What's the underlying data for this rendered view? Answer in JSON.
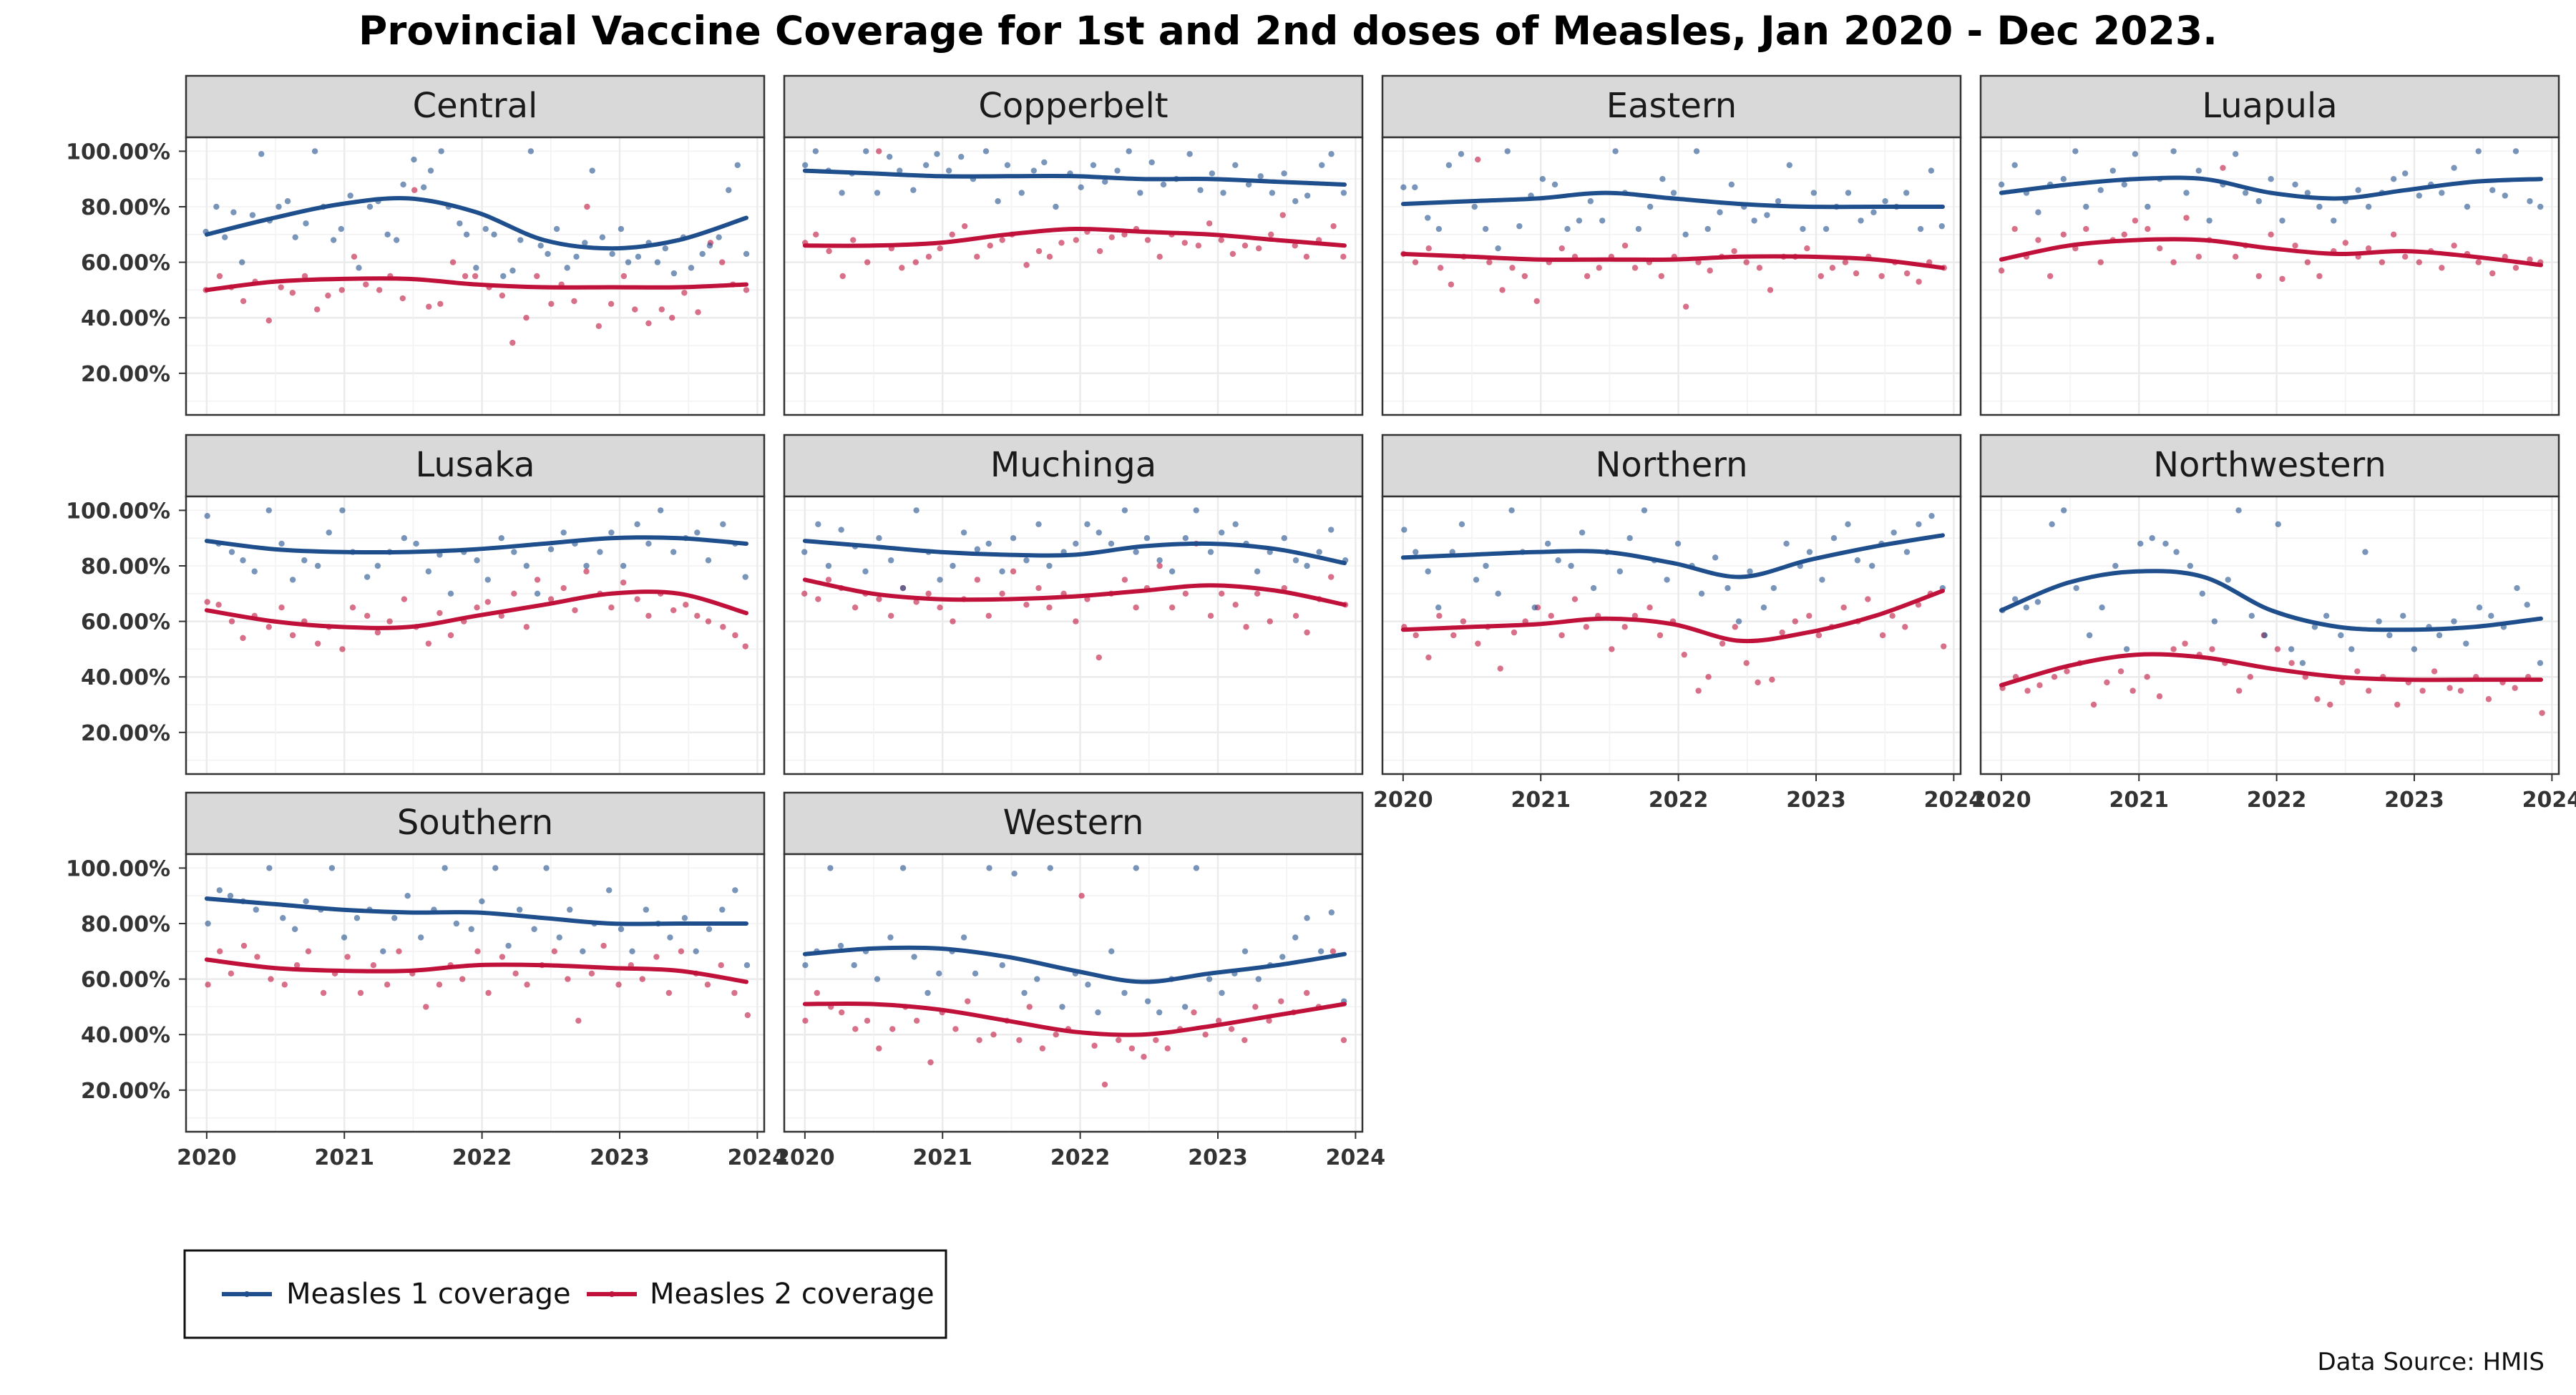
{
  "chart_data": {
    "type": "scatter",
    "title": "Provincial Vaccine Coverage for 1st and 2nd doses of Measles, Jan 2020 - Dec 2023.",
    "caption": "Data Source: HMIS",
    "xlabel": "",
    "ylabel": "",
    "x_ticks": [
      "2020",
      "2021",
      "2022",
      "2023",
      "2024"
    ],
    "y_ticks": [
      "20.00%",
      "40.00%",
      "60.00%",
      "80.00%",
      "100.00%"
    ],
    "xlim": [
      2019.85,
      2024.05
    ],
    "ylim": [
      0.05,
      1.05
    ],
    "grid": true,
    "legend_position": "bottom-left",
    "series_meta": [
      {
        "key": "m1",
        "name": "Measles 1 coverage",
        "color": "#1f4e8c"
      },
      {
        "key": "m2",
        "name": "Measles 2 coverage",
        "color": "#c0113a"
      }
    ],
    "panels": [
      {
        "name": "Central",
        "m1": [
          0.71,
          0.8,
          0.69,
          0.78,
          0.6,
          0.77,
          0.99,
          0.75,
          0.8,
          0.82,
          0.69,
          0.74,
          1.0,
          0.8,
          0.68,
          0.72,
          0.84,
          0.58,
          0.8,
          0.82,
          0.7,
          0.68,
          0.88,
          0.97,
          0.87,
          0.93,
          1.0,
          0.8,
          0.74,
          0.7,
          0.58,
          0.72,
          0.7,
          0.55,
          0.57,
          0.68,
          1.0,
          0.66,
          0.63,
          0.72,
          0.58,
          0.62,
          0.67,
          0.93,
          0.69,
          0.63,
          0.72,
          0.6,
          0.62,
          0.67,
          0.6,
          0.65,
          0.56,
          0.69,
          0.58,
          0.63,
          0.66,
          0.69,
          0.86,
          0.95,
          0.63
        ],
        "m1_trend": [
          0.7,
          0.76,
          0.81,
          0.83,
          0.78,
          0.68,
          0.65,
          0.68,
          0.76
        ],
        "m2": [
          0.5,
          0.55,
          0.51,
          0.46,
          0.53,
          0.39,
          0.51,
          0.49,
          0.55,
          0.43,
          0.48,
          0.5,
          0.62,
          0.52,
          0.5,
          0.55,
          0.47,
          0.86,
          0.44,
          0.45,
          0.6,
          0.55,
          0.55,
          0.51,
          0.48,
          0.31,
          0.4,
          0.55,
          0.45,
          0.52,
          0.46,
          0.8,
          0.37,
          0.45,
          0.55,
          0.43,
          0.38,
          0.43,
          0.4,
          0.49,
          0.42,
          0.67,
          0.6,
          0.52,
          0.5
        ],
        "m2_trend": [
          0.5,
          0.53,
          0.54,
          0.54,
          0.52,
          0.51,
          0.51,
          0.51,
          0.52
        ]
      },
      {
        "name": "Copperbelt",
        "m1": [
          0.95,
          1.0,
          0.93,
          0.85,
          0.92,
          1.0,
          0.85,
          0.98,
          0.93,
          0.86,
          0.95,
          0.99,
          0.93,
          0.98,
          0.9,
          1.0,
          0.82,
          0.95,
          0.85,
          0.93,
          0.96,
          0.8,
          0.92,
          0.87,
          0.95,
          0.89,
          0.93,
          1.0,
          0.85,
          0.96,
          0.88,
          0.9,
          0.99,
          0.86,
          0.92,
          0.85,
          0.95,
          0.88,
          0.91,
          0.85,
          0.92,
          0.82,
          0.84,
          0.95,
          0.99,
          0.85
        ],
        "m1_trend": [
          0.93,
          0.92,
          0.91,
          0.91,
          0.91,
          0.9,
          0.9,
          0.89,
          0.88
        ],
        "m2": [
          0.67,
          0.7,
          0.64,
          0.55,
          0.68,
          0.6,
          1.0,
          0.65,
          0.58,
          0.6,
          0.62,
          0.65,
          0.7,
          0.73,
          0.62,
          0.66,
          0.68,
          0.7,
          0.59,
          0.64,
          0.62,
          0.67,
          0.68,
          0.71,
          0.64,
          0.69,
          0.7,
          0.72,
          0.68,
          0.62,
          0.7,
          0.67,
          0.66,
          0.74,
          0.68,
          0.63,
          0.66,
          0.65,
          0.7,
          0.77,
          0.66,
          0.62,
          0.68,
          0.73,
          0.62
        ],
        "m2_trend": [
          0.66,
          0.66,
          0.67,
          0.7,
          0.72,
          0.71,
          0.7,
          0.68,
          0.66
        ]
      },
      {
        "name": "Eastern",
        "m1": [
          0.87,
          0.87,
          0.76,
          0.72,
          0.95,
          0.99,
          0.8,
          0.72,
          0.65,
          1.0,
          0.73,
          0.84,
          0.9,
          0.88,
          0.72,
          0.75,
          0.82,
          0.75,
          1.0,
          0.85,
          0.72,
          0.8,
          0.9,
          0.85,
          0.7,
          1.0,
          0.72,
          0.78,
          0.88,
          0.8,
          0.75,
          0.77,
          0.82,
          0.95,
          0.72,
          0.85,
          0.72,
          0.8,
          0.85,
          0.75,
          0.78,
          0.82,
          0.8,
          0.85,
          0.72,
          0.93,
          0.73
        ],
        "m1_trend": [
          0.81,
          0.82,
          0.83,
          0.85,
          0.83,
          0.81,
          0.8,
          0.8,
          0.8
        ],
        "m2": [
          0.63,
          0.6,
          0.65,
          0.58,
          0.52,
          0.62,
          0.97,
          0.6,
          0.5,
          0.58,
          0.55,
          0.46,
          0.6,
          0.65,
          0.62,
          0.55,
          0.58,
          0.62,
          0.66,
          0.58,
          0.6,
          0.55,
          0.62,
          0.44,
          0.6,
          0.57,
          0.62,
          0.64,
          0.6,
          0.58,
          0.5,
          0.62,
          0.62,
          0.65,
          0.55,
          0.58,
          0.6,
          0.56,
          0.62,
          0.55,
          0.6,
          0.56,
          0.53,
          0.6,
          0.58
        ],
        "m2_trend": [
          0.63,
          0.62,
          0.61,
          0.61,
          0.61,
          0.62,
          0.62,
          0.61,
          0.58
        ]
      },
      {
        "name": "Luapula",
        "m1": [
          0.88,
          0.95,
          0.85,
          0.78,
          0.88,
          0.9,
          1.0,
          0.8,
          0.86,
          0.93,
          0.88,
          0.99,
          0.8,
          0.9,
          1.0,
          0.85,
          0.93,
          0.75,
          0.88,
          0.99,
          0.85,
          0.82,
          0.9,
          0.75,
          0.88,
          0.85,
          0.8,
          0.75,
          0.82,
          0.86,
          0.8,
          0.85,
          0.9,
          0.92,
          0.84,
          0.88,
          0.85,
          0.94,
          0.8,
          1.0,
          0.86,
          0.84,
          1.0,
          0.82,
          0.8
        ],
        "m1_trend": [
          0.85,
          0.88,
          0.9,
          0.9,
          0.85,
          0.83,
          0.86,
          0.89,
          0.9
        ],
        "m2": [
          0.57,
          0.72,
          0.62,
          0.68,
          0.55,
          0.7,
          0.65,
          0.72,
          0.6,
          0.68,
          0.7,
          0.75,
          0.72,
          0.65,
          0.6,
          0.76,
          0.62,
          0.68,
          0.94,
          0.62,
          0.66,
          0.55,
          0.7,
          0.54,
          0.66,
          0.6,
          0.55,
          0.64,
          0.67,
          0.62,
          0.65,
          0.6,
          0.7,
          0.62,
          0.6,
          0.64,
          0.58,
          0.66,
          0.63,
          0.6,
          0.56,
          0.62,
          0.58,
          0.61,
          0.6
        ],
        "m2_trend": [
          0.61,
          0.66,
          0.68,
          0.68,
          0.65,
          0.63,
          0.64,
          0.62,
          0.59
        ]
      },
      {
        "name": "Lusaka",
        "m1": [
          0.98,
          0.88,
          0.85,
          0.82,
          0.78,
          1.0,
          0.88,
          0.75,
          0.82,
          0.8,
          0.92,
          1.0,
          0.85,
          0.76,
          0.8,
          0.85,
          0.9,
          0.88,
          0.78,
          0.84,
          0.7,
          0.85,
          0.82,
          0.75,
          0.9,
          0.85,
          0.8,
          0.7,
          0.86,
          0.92,
          0.88,
          0.8,
          0.85,
          0.92,
          0.8,
          0.95,
          0.88,
          1.0,
          0.85,
          0.9,
          0.92,
          0.82,
          0.95,
          0.88,
          0.76
        ],
        "m1_trend": [
          0.89,
          0.86,
          0.85,
          0.85,
          0.86,
          0.88,
          0.9,
          0.9,
          0.88
        ],
        "m2": [
          0.67,
          0.66,
          0.6,
          0.54,
          0.62,
          0.58,
          0.65,
          0.55,
          0.6,
          0.52,
          0.58,
          0.5,
          0.65,
          0.62,
          0.56,
          0.6,
          0.68,
          0.58,
          0.52,
          0.63,
          0.55,
          0.6,
          0.65,
          0.67,
          0.62,
          0.7,
          0.58,
          0.75,
          0.68,
          0.72,
          0.64,
          0.78,
          0.7,
          0.65,
          0.74,
          0.68,
          0.62,
          0.7,
          0.64,
          0.66,
          0.62,
          0.6,
          0.58,
          0.55,
          0.51
        ],
        "m2_trend": [
          0.64,
          0.6,
          0.58,
          0.58,
          0.62,
          0.66,
          0.7,
          0.7,
          0.63
        ]
      },
      {
        "name": "Muchinga",
        "m1": [
          0.85,
          0.95,
          0.8,
          0.93,
          0.87,
          0.78,
          0.9,
          0.82,
          0.72,
          1.0,
          0.85,
          0.75,
          0.8,
          0.92,
          0.86,
          0.88,
          0.78,
          0.9,
          0.82,
          0.95,
          0.8,
          0.85,
          0.88,
          0.95,
          0.92,
          0.88,
          1.0,
          0.85,
          0.9,
          0.82,
          0.78,
          0.9,
          1.0,
          0.85,
          0.92,
          0.95,
          0.88,
          0.78,
          0.85,
          0.9,
          0.82,
          0.8,
          0.85,
          0.93,
          0.82
        ],
        "m1_trend": [
          0.89,
          0.87,
          0.85,
          0.84,
          0.84,
          0.87,
          0.88,
          0.86,
          0.81
        ],
        "m2": [
          0.7,
          0.68,
          0.75,
          0.72,
          0.65,
          0.7,
          0.68,
          0.62,
          0.72,
          0.67,
          0.7,
          0.65,
          0.6,
          0.68,
          0.75,
          0.62,
          0.7,
          0.78,
          0.66,
          0.72,
          0.65,
          0.7,
          0.6,
          0.68,
          0.47,
          0.7,
          0.75,
          0.65,
          0.72,
          0.8,
          0.65,
          0.7,
          0.88,
          0.62,
          0.7,
          0.66,
          0.58,
          0.7,
          0.6,
          0.72,
          0.62,
          0.56,
          0.68,
          0.76,
          0.66
        ],
        "m2_trend": [
          0.75,
          0.7,
          0.68,
          0.68,
          0.69,
          0.71,
          0.73,
          0.71,
          0.66
        ]
      },
      {
        "name": "Northern",
        "m1": [
          0.93,
          0.85,
          0.78,
          0.65,
          0.85,
          0.95,
          0.75,
          0.8,
          0.7,
          1.0,
          0.85,
          0.65,
          0.88,
          0.82,
          0.8,
          0.92,
          0.72,
          0.85,
          0.78,
          0.9,
          1.0,
          0.82,
          0.75,
          0.88,
          0.8,
          0.7,
          0.83,
          0.72,
          0.6,
          0.78,
          0.65,
          0.72,
          0.88,
          0.8,
          0.85,
          0.75,
          0.9,
          0.95,
          0.82,
          0.8,
          0.88,
          0.92,
          0.85,
          0.95,
          0.98,
          0.72
        ],
        "m1_trend": [
          0.83,
          0.84,
          0.85,
          0.85,
          0.81,
          0.76,
          0.82,
          0.87,
          0.91
        ],
        "m2": [
          0.58,
          0.55,
          0.47,
          0.62,
          0.55,
          0.6,
          0.52,
          0.58,
          0.43,
          0.56,
          0.6,
          0.65,
          0.62,
          0.55,
          0.68,
          0.58,
          0.62,
          0.5,
          0.58,
          0.62,
          0.65,
          0.55,
          0.6,
          0.48,
          0.35,
          0.4,
          0.52,
          0.58,
          0.45,
          0.38,
          0.39,
          0.56,
          0.6,
          0.62,
          0.55,
          0.58,
          0.65,
          0.6,
          0.68,
          0.55,
          0.62,
          0.58,
          0.66,
          0.7,
          0.51
        ],
        "m2_trend": [
          0.57,
          0.58,
          0.59,
          0.61,
          0.59,
          0.53,
          0.56,
          0.62,
          0.71
        ]
      },
      {
        "name": "Northwestern",
        "m1": [
          0.64,
          0.68,
          0.65,
          0.67,
          0.95,
          1.0,
          0.72,
          0.55,
          0.65,
          0.8,
          0.5,
          0.88,
          0.9,
          0.88,
          0.85,
          0.8,
          0.7,
          0.6,
          0.75,
          1.0,
          0.62,
          0.55,
          0.95,
          0.5,
          0.45,
          0.58,
          0.62,
          0.55,
          0.5,
          0.85,
          0.6,
          0.55,
          0.62,
          0.5,
          0.58,
          0.55,
          0.6,
          0.52,
          0.65,
          0.62,
          0.58,
          0.72,
          0.66,
          0.45
        ],
        "m1_trend": [
          0.64,
          0.74,
          0.78,
          0.76,
          0.64,
          0.58,
          0.57,
          0.58,
          0.61
        ],
        "m2": [
          0.36,
          0.4,
          0.35,
          0.37,
          0.4,
          0.42,
          0.45,
          0.3,
          0.38,
          0.42,
          0.35,
          0.4,
          0.33,
          0.5,
          0.52,
          0.48,
          0.5,
          0.45,
          0.35,
          0.4,
          0.55,
          0.5,
          0.45,
          0.4,
          0.32,
          0.3,
          0.38,
          0.42,
          0.35,
          0.4,
          0.3,
          0.38,
          0.35,
          0.42,
          0.36,
          0.35,
          0.4,
          0.32,
          0.38,
          0.36,
          0.4,
          0.27
        ],
        "m2_trend": [
          0.37,
          0.44,
          0.48,
          0.47,
          0.43,
          0.4,
          0.39,
          0.39,
          0.39
        ]
      },
      {
        "name": "Southern",
        "m1": [
          0.8,
          0.92,
          0.9,
          0.88,
          0.85,
          1.0,
          0.82,
          0.78,
          0.88,
          0.85,
          1.0,
          0.75,
          0.82,
          0.85,
          0.7,
          0.82,
          0.9,
          0.75,
          0.85,
          1.0,
          0.8,
          0.78,
          0.88,
          1.0,
          0.72,
          0.85,
          0.78,
          1.0,
          0.75,
          0.85,
          0.7,
          0.8,
          0.92,
          0.78,
          0.7,
          0.85,
          0.8,
          0.75,
          0.82,
          0.7,
          0.78,
          0.85,
          0.92,
          0.65
        ],
        "m1_trend": [
          0.89,
          0.87,
          0.85,
          0.84,
          0.84,
          0.82,
          0.8,
          0.8,
          0.8
        ],
        "m2": [
          0.58,
          0.7,
          0.62,
          0.72,
          0.68,
          0.6,
          0.58,
          0.65,
          0.7,
          0.55,
          0.62,
          0.68,
          0.55,
          0.65,
          0.58,
          0.7,
          0.62,
          0.5,
          0.58,
          0.65,
          0.6,
          0.7,
          0.55,
          0.68,
          0.62,
          0.58,
          0.65,
          0.7,
          0.6,
          0.45,
          0.62,
          0.72,
          0.58,
          0.65,
          0.6,
          0.68,
          0.55,
          0.7,
          0.62,
          0.58,
          0.65,
          0.55,
          0.47
        ],
        "m2_trend": [
          0.67,
          0.64,
          0.63,
          0.63,
          0.65,
          0.65,
          0.64,
          0.63,
          0.59
        ]
      },
      {
        "name": "Western",
        "m1": [
          0.65,
          0.7,
          1.0,
          0.72,
          0.65,
          0.7,
          0.6,
          0.75,
          1.0,
          0.68,
          0.55,
          0.62,
          0.7,
          0.75,
          0.62,
          1.0,
          0.65,
          0.98,
          0.55,
          0.6,
          1.0,
          0.5,
          0.62,
          0.58,
          0.48,
          0.7,
          0.55,
          1.0,
          0.52,
          0.48,
          0.6,
          0.5,
          1.0,
          0.6,
          0.55,
          0.62,
          0.7,
          0.6,
          0.65,
          0.68,
          0.75,
          0.82,
          0.7,
          0.84,
          0.52
        ],
        "m1_trend": [
          0.69,
          0.71,
          0.71,
          0.68,
          0.63,
          0.59,
          0.62,
          0.65,
          0.69
        ],
        "m2": [
          0.45,
          0.55,
          0.5,
          0.48,
          0.42,
          0.45,
          0.35,
          0.42,
          0.5,
          0.45,
          0.3,
          0.48,
          0.42,
          0.52,
          0.38,
          0.4,
          0.45,
          0.38,
          0.5,
          0.35,
          0.4,
          0.42,
          0.9,
          0.36,
          0.22,
          0.38,
          0.35,
          0.32,
          0.38,
          0.35,
          0.42,
          0.48,
          0.4,
          0.45,
          0.42,
          0.38,
          0.5,
          0.45,
          0.52,
          0.48,
          0.55,
          0.5,
          0.7,
          0.38
        ],
        "m2_trend": [
          0.51,
          0.51,
          0.49,
          0.45,
          0.41,
          0.4,
          0.43,
          0.47,
          0.51
        ]
      }
    ]
  }
}
